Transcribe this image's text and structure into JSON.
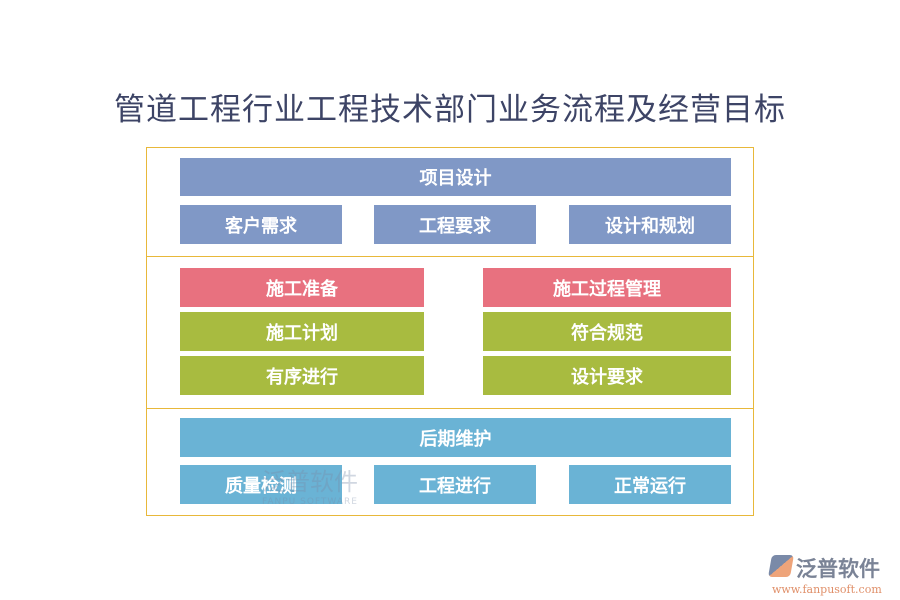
{
  "title": "管道工程行业工程技术部门业务流程及经营目标",
  "colors": {
    "blue": "#8098c6",
    "red": "#e8717f",
    "green": "#a8bb40",
    "cyan": "#6ab3d5",
    "border": "#e8b83a"
  },
  "section1": {
    "header": "项目设计",
    "items": [
      "客户需求",
      "工程要求",
      "设计和规划"
    ]
  },
  "section2": {
    "left": [
      "施工准备",
      "施工计划",
      "有序进行"
    ],
    "right": [
      "施工过程管理",
      "符合规范",
      "设计要求"
    ]
  },
  "section3": {
    "header": "后期维护",
    "items": [
      "质量检测",
      "工程进行",
      "正常运行"
    ]
  },
  "watermark": {
    "name": "泛普软件",
    "sub": "FANPU SOFTWARE"
  },
  "logo": {
    "name": "泛普软件",
    "url": "www.fanpusoft.com"
  }
}
